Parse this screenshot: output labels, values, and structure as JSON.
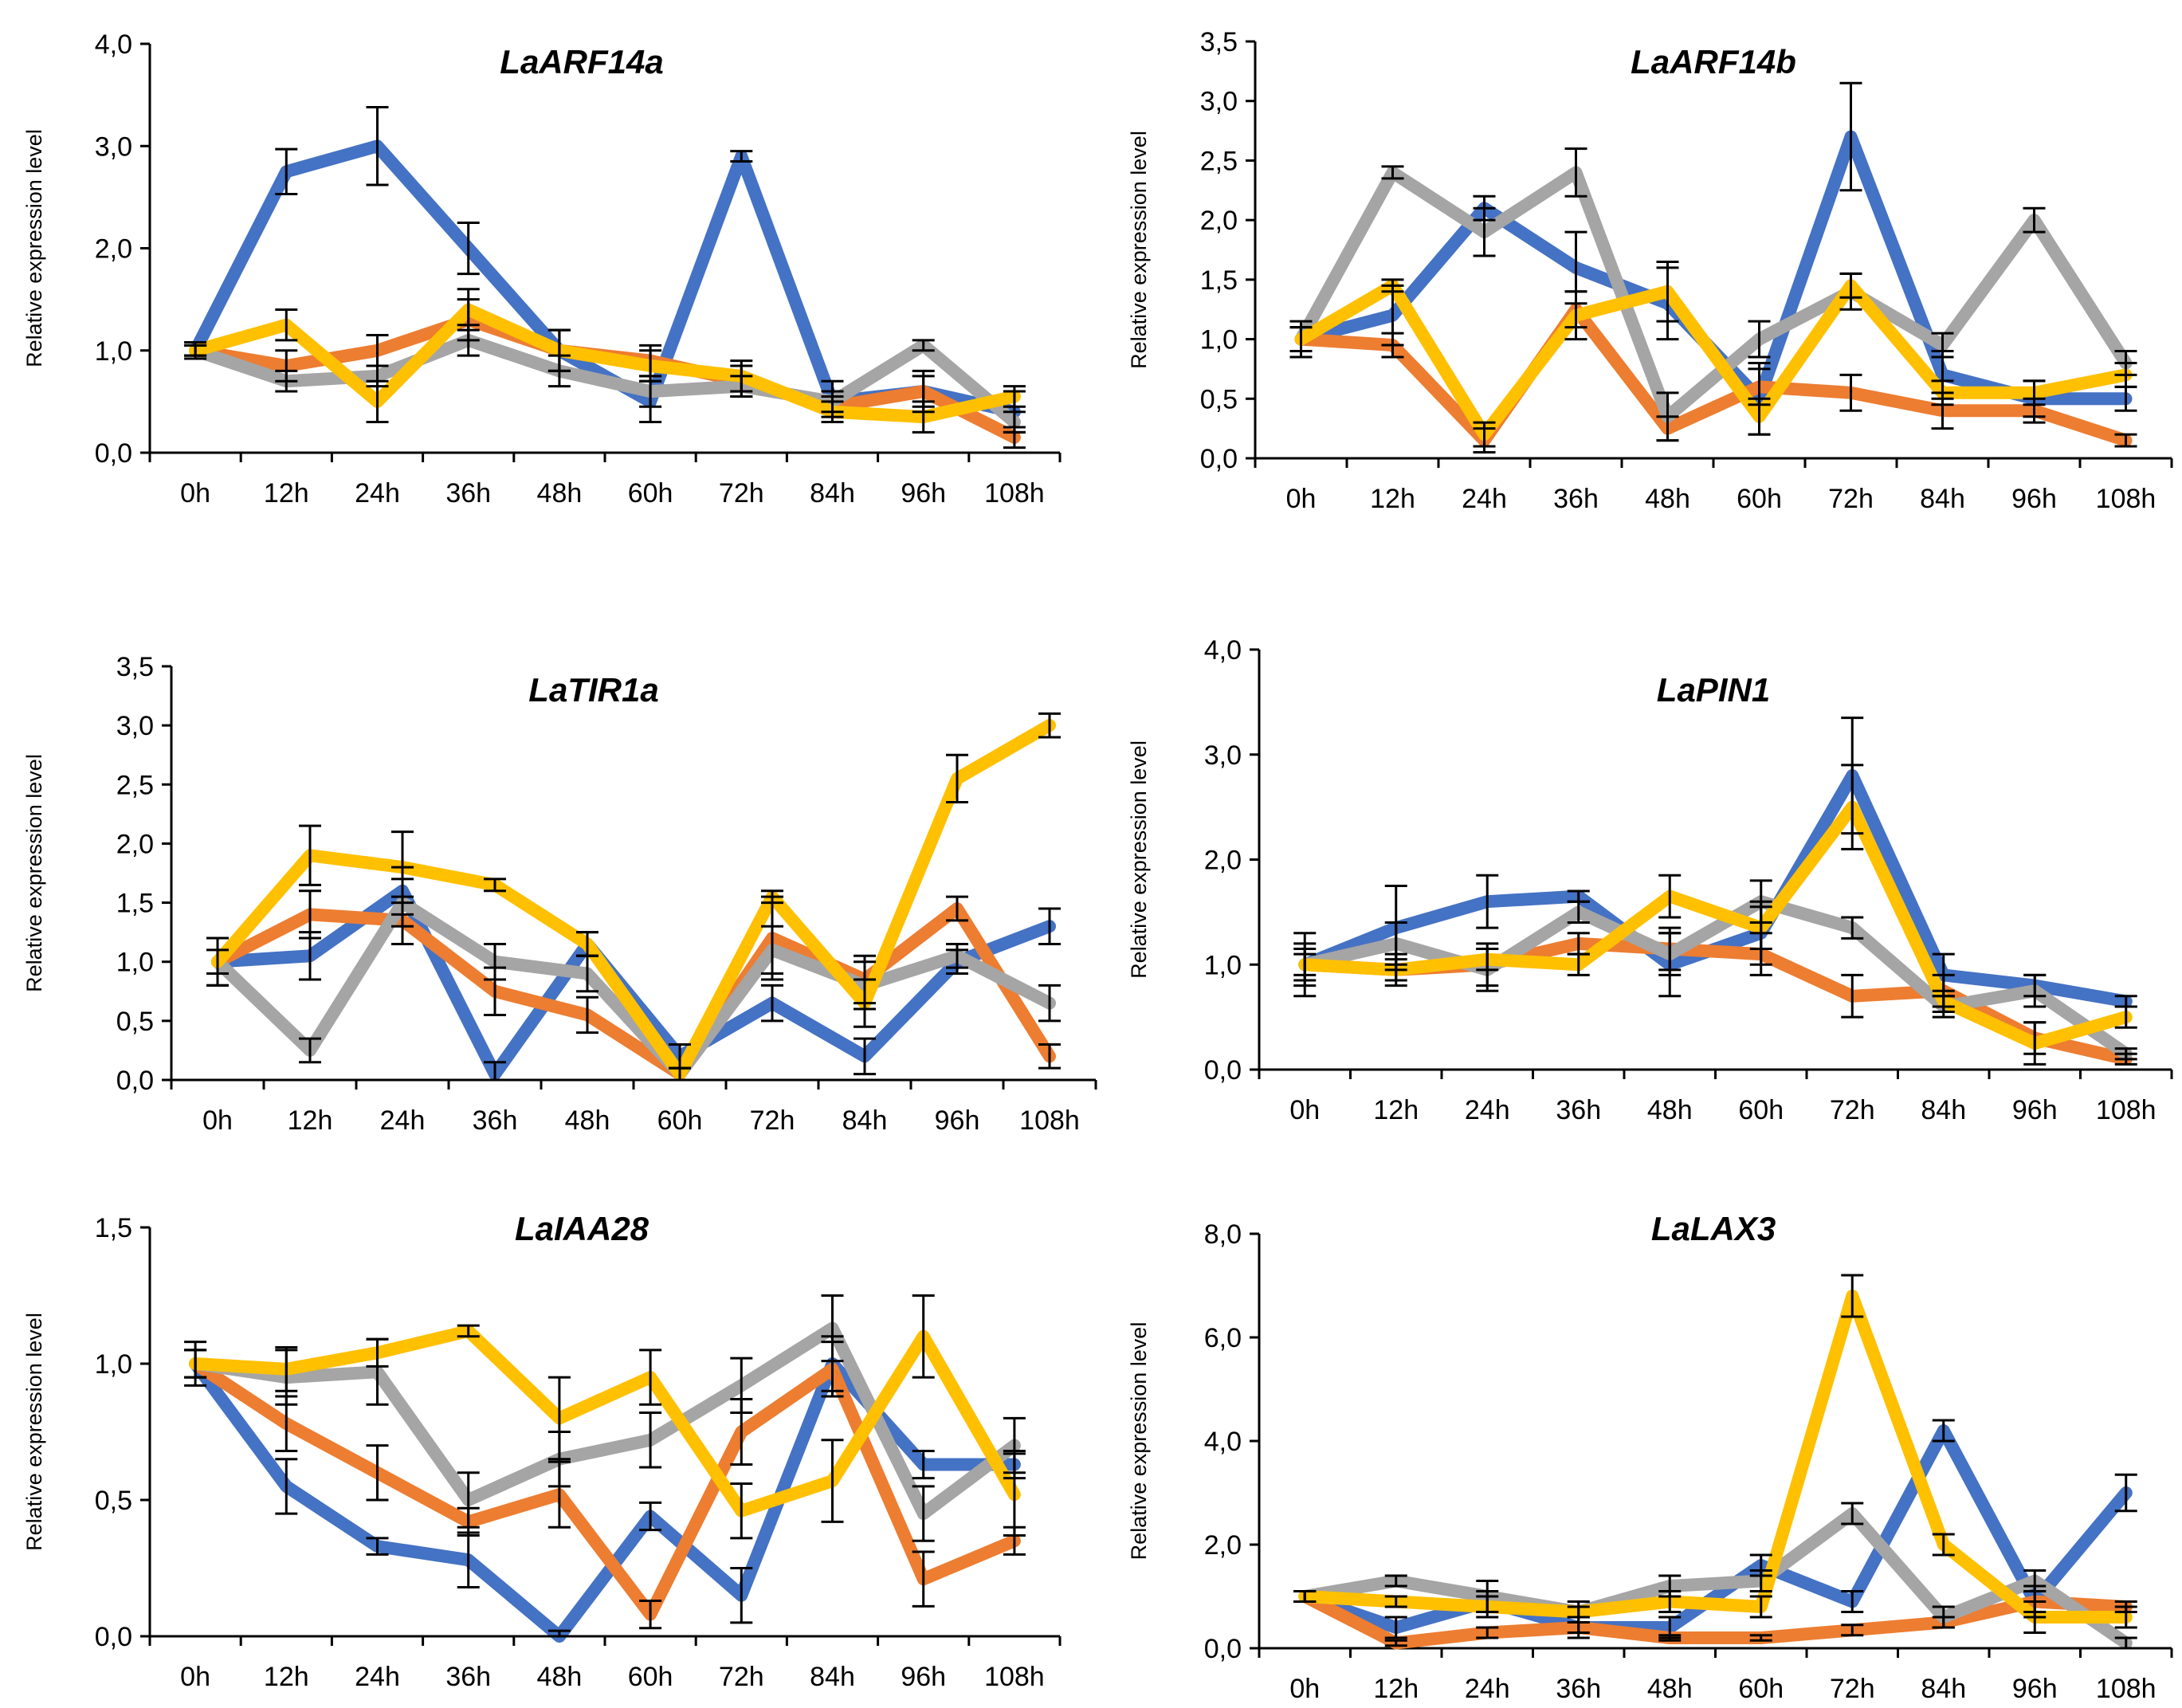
{
  "chart_data": [
    {
      "type": "line",
      "title": "LaARF14a",
      "ylabel": "Relative expression level",
      "categories": [
        "0h",
        "12h",
        "24h",
        "36h",
        "48h",
        "60h",
        "72h",
        "84h",
        "96h",
        "108h"
      ],
      "ylim": [
        0,
        4
      ],
      "yticks": [
        "0,0",
        "1,0",
        "2,0",
        "3,0",
        "4,0"
      ],
      "series": [
        {
          "color": "#4472C4",
          "values": [
            1.0,
            2.75,
            3.0,
            2.0,
            1.0,
            0.5,
            2.9,
            0.5,
            0.6,
            0.4
          ],
          "errors": [
            0.08,
            0.22,
            0.38,
            0.25,
            0.2,
            0.2,
            0.05,
            0.2,
            0.2,
            0.2
          ]
        },
        {
          "color": "#ED7D31",
          "values": [
            1.0,
            0.85,
            1.0,
            1.3,
            1.0,
            0.9,
            0.7,
            0.45,
            0.6,
            0.15
          ],
          "errors": [
            0.05,
            0.15,
            0.15,
            0.2,
            0.2,
            0.15,
            0.15,
            0.1,
            0.15,
            0.1
          ]
        },
        {
          "color": "#A5A5A5",
          "values": [
            1.0,
            0.7,
            0.75,
            1.1,
            0.8,
            0.6,
            0.65,
            0.5,
            1.05,
            0.3
          ],
          "errors": [
            0.05,
            0.1,
            0.1,
            0.15,
            0.15,
            0.15,
            0.1,
            0.1,
            0.05,
            0.1
          ]
        },
        {
          "color": "#FFC000",
          "values": [
            1.0,
            1.25,
            0.5,
            1.4,
            1.0,
            0.85,
            0.75,
            0.4,
            0.35,
            0.55
          ],
          "errors": [
            0.05,
            0.15,
            0.2,
            0.2,
            0.2,
            0.15,
            0.15,
            0.1,
            0.15,
            0.1
          ]
        }
      ]
    },
    {
      "type": "line",
      "title": "LaARF14b",
      "ylabel": "Relative expression level",
      "categories": [
        "0h",
        "12h",
        "24h",
        "36h",
        "48h",
        "60h",
        "72h",
        "84h",
        "96h",
        "108h"
      ],
      "ylim": [
        0,
        3.5
      ],
      "yticks": [
        "0,0",
        "0,5",
        "1,0",
        "1,5",
        "2,0",
        "2,5",
        "3,0",
        "3,5"
      ],
      "series": [
        {
          "color": "#4472C4",
          "values": [
            1.0,
            1.2,
            2.1,
            1.6,
            1.3,
            0.5,
            2.7,
            0.7,
            0.5,
            0.5
          ],
          "errors": [
            0.15,
            0.25,
            0.1,
            0.3,
            0.3,
            0.3,
            0.45,
            0.2,
            0.15,
            0.1
          ]
        },
        {
          "color": "#ED7D31",
          "values": [
            1.0,
            0.95,
            0.15,
            1.25,
            0.25,
            0.6,
            0.55,
            0.4,
            0.4,
            0.15
          ],
          "errors": [
            0.1,
            0.1,
            0.1,
            0.15,
            0.1,
            0.15,
            0.15,
            0.15,
            0.1,
            0.05
          ]
        },
        {
          "color": "#A5A5A5",
          "values": [
            1.0,
            2.4,
            1.9,
            2.4,
            0.35,
            1.0,
            1.4,
            0.95,
            2.0,
            0.8
          ],
          "errors": [
            0.1,
            0.05,
            0.2,
            0.2,
            0.2,
            0.15,
            0.15,
            0.1,
            0.1,
            0.1
          ]
        },
        {
          "color": "#FFC000",
          "values": [
            1.0,
            1.45,
            0.2,
            1.2,
            1.4,
            0.35,
            1.45,
            0.55,
            0.55,
            0.7
          ],
          "errors": [
            0.1,
            0.05,
            0.1,
            0.2,
            0.25,
            0.15,
            0.1,
            0.1,
            0.1,
            0.1
          ]
        }
      ]
    },
    {
      "type": "line",
      "title": "LaTIR1a",
      "ylabel": "Relative expression level",
      "categories": [
        "0h",
        "12h",
        "24h",
        "36h",
        "48h",
        "60h",
        "72h",
        "84h",
        "96h",
        "108h"
      ],
      "ylim": [
        0,
        3.5
      ],
      "yticks": [
        "0,0",
        "0,5",
        "1,0",
        "1,5",
        "2,0",
        "2,5",
        "3,0",
        "3,5"
      ],
      "series": [
        {
          "color": "#4472C4",
          "values": [
            1.0,
            1.05,
            1.6,
            0.05,
            1.15,
            0.2,
            0.65,
            0.2,
            1.0,
            1.3
          ],
          "errors": [
            0.2,
            0.2,
            0.2,
            0.1,
            0.1,
            0.1,
            0.15,
            0.15,
            0.1,
            0.15
          ]
        },
        {
          "color": "#ED7D31",
          "values": [
            1.0,
            1.4,
            1.35,
            0.75,
            0.55,
            0.05,
            1.2,
            0.85,
            1.45,
            0.2
          ],
          "errors": [
            0.2,
            0.2,
            0.2,
            0.2,
            0.15,
            0.05,
            0.35,
            0.2,
            0.1,
            0.1
          ]
        },
        {
          "color": "#A5A5A5",
          "values": [
            1.0,
            0.25,
            1.5,
            1.0,
            0.9,
            0.05,
            1.1,
            0.8,
            1.05,
            0.65
          ],
          "errors": [
            0.1,
            0.1,
            0.2,
            0.15,
            0.15,
            0.05,
            0.2,
            0.2,
            0.1,
            0.15
          ]
        },
        {
          "color": "#FFC000",
          "values": [
            1.0,
            1.9,
            1.8,
            1.65,
            1.15,
            0.05,
            1.55,
            0.65,
            2.55,
            3.0
          ],
          "errors": [
            0.2,
            0.25,
            0.3,
            0.05,
            0.1,
            0.05,
            0.05,
            0.2,
            0.2,
            0.1
          ]
        }
      ]
    },
    {
      "type": "line",
      "title": "LaPIN1",
      "ylabel": "Relative expression level",
      "categories": [
        "0h",
        "12h",
        "24h",
        "36h",
        "48h",
        "60h",
        "72h",
        "84h",
        "96h",
        "108h"
      ],
      "ylim": [
        0,
        4
      ],
      "yticks": [
        "0,0",
        "1,0",
        "2,0",
        "3,0",
        "4,0"
      ],
      "series": [
        {
          "color": "#4472C4",
          "values": [
            1.0,
            1.35,
            1.6,
            1.65,
            1.0,
            1.3,
            2.8,
            0.9,
            0.8,
            0.65
          ],
          "errors": [
            0.3,
            0.4,
            0.25,
            0.05,
            0.3,
            0.3,
            0.55,
            0.2,
            0.1,
            0.05
          ]
        },
        {
          "color": "#ED7D31",
          "values": [
            1.0,
            0.95,
            1.0,
            1.2,
            1.15,
            1.1,
            0.7,
            0.75,
            0.3,
            0.1
          ],
          "errors": [
            0.2,
            0.15,
            0.2,
            0.1,
            0.2,
            0.2,
            0.2,
            0.15,
            0.15,
            0.05
          ]
        },
        {
          "color": "#A5A5A5",
          "values": [
            1.0,
            1.2,
            0.95,
            1.5,
            1.1,
            1.6,
            1.35,
            0.6,
            0.75,
            0.15
          ],
          "errors": [
            0.15,
            0.2,
            0.2,
            0.1,
            0.2,
            0.2,
            0.1,
            0.1,
            0.15,
            0.05
          ]
        },
        {
          "color": "#FFC000",
          "values": [
            1.0,
            0.95,
            1.05,
            1.0,
            1.65,
            1.35,
            2.5,
            0.65,
            0.25,
            0.5
          ],
          "errors": [
            0.1,
            0.1,
            0.1,
            0.1,
            0.2,
            0.2,
            0.4,
            0.1,
            0.2,
            0.1
          ]
        }
      ]
    },
    {
      "type": "line",
      "title": "LaIAA28",
      "ylabel": "Relative expression level",
      "categories": [
        "0h",
        "12h",
        "24h",
        "36h",
        "48h",
        "60h",
        "72h",
        "84h",
        "96h",
        "108h"
      ],
      "ylim": [
        0,
        1.5
      ],
      "yticks": [
        "0,0",
        "0,5",
        "1,0",
        "1,5"
      ],
      "series": [
        {
          "color": "#4472C4",
          "values": [
            1.0,
            0.55,
            0.33,
            0.28,
            0.0,
            0.44,
            0.15,
            1.0,
            0.63,
            0.63
          ],
          "errors": [
            0.05,
            0.1,
            0.03,
            0.1,
            0.02,
            0.05,
            0.1,
            0.1,
            0.05,
            0.05
          ]
        },
        {
          "color": "#ED7D31",
          "values": [
            1.0,
            0.78,
            0.6,
            0.42,
            0.52,
            0.08,
            0.75,
            0.98,
            0.21,
            0.35
          ],
          "errors": [
            0.08,
            0.1,
            0.1,
            0.05,
            0.12,
            0.05,
            0.12,
            0.1,
            0.1,
            0.05
          ]
        },
        {
          "color": "#A5A5A5",
          "values": [
            1.0,
            0.95,
            0.97,
            0.5,
            0.65,
            0.72,
            0.92,
            1.13,
            0.45,
            0.7
          ],
          "errors": [
            0.05,
            0.1,
            0.12,
            0.1,
            0.1,
            0.1,
            0.1,
            0.12,
            0.1,
            0.1
          ]
        },
        {
          "color": "#FFC000",
          "values": [
            1.0,
            0.98,
            1.04,
            1.12,
            0.8,
            0.95,
            0.46,
            0.57,
            1.1,
            0.52
          ],
          "errors": [
            0.05,
            0.08,
            0.05,
            0.02,
            0.15,
            0.1,
            0.1,
            0.15,
            0.15,
            0.15
          ]
        }
      ]
    },
    {
      "type": "line",
      "title": "LaLAX3",
      "ylabel": "Relative expression level",
      "categories": [
        "0h",
        "12h",
        "24h",
        "36h",
        "48h",
        "60h",
        "72h",
        "84h",
        "96h",
        "108h"
      ],
      "ylim": [
        0,
        8
      ],
      "yticks": [
        "0,0",
        "2,0",
        "4,0",
        "6,0",
        "8,0"
      ],
      "series": [
        {
          "color": "#4472C4",
          "values": [
            1.0,
            0.4,
            0.9,
            0.4,
            0.4,
            1.6,
            0.9,
            4.2,
            0.9,
            3.0
          ],
          "errors": [
            0.1,
            0.2,
            0.2,
            0.2,
            0.2,
            0.2,
            0.2,
            0.2,
            0.3,
            0.35
          ]
        },
        {
          "color": "#ED7D31",
          "values": [
            1.0,
            0.1,
            0.3,
            0.4,
            0.2,
            0.2,
            0.35,
            0.5,
            0.9,
            0.8
          ],
          "errors": [
            0.1,
            0.05,
            0.1,
            0.1,
            0.05,
            0.05,
            0.1,
            0.1,
            0.2,
            0.1
          ]
        },
        {
          "color": "#A5A5A5",
          "values": [
            1.0,
            1.3,
            1.0,
            0.7,
            1.2,
            1.3,
            2.6,
            0.6,
            1.3,
            0.1
          ],
          "errors": [
            0.1,
            0.1,
            0.3,
            0.2,
            0.2,
            0.2,
            0.2,
            0.2,
            0.2,
            0.1
          ]
        },
        {
          "color": "#FFC000",
          "values": [
            1.0,
            0.9,
            0.8,
            0.7,
            0.9,
            0.8,
            6.8,
            2.0,
            0.6,
            0.6
          ],
          "errors": [
            0.1,
            0.1,
            0.2,
            0.1,
            0.2,
            0.2,
            0.4,
            0.2,
            0.3,
            0.2
          ]
        }
      ]
    }
  ]
}
